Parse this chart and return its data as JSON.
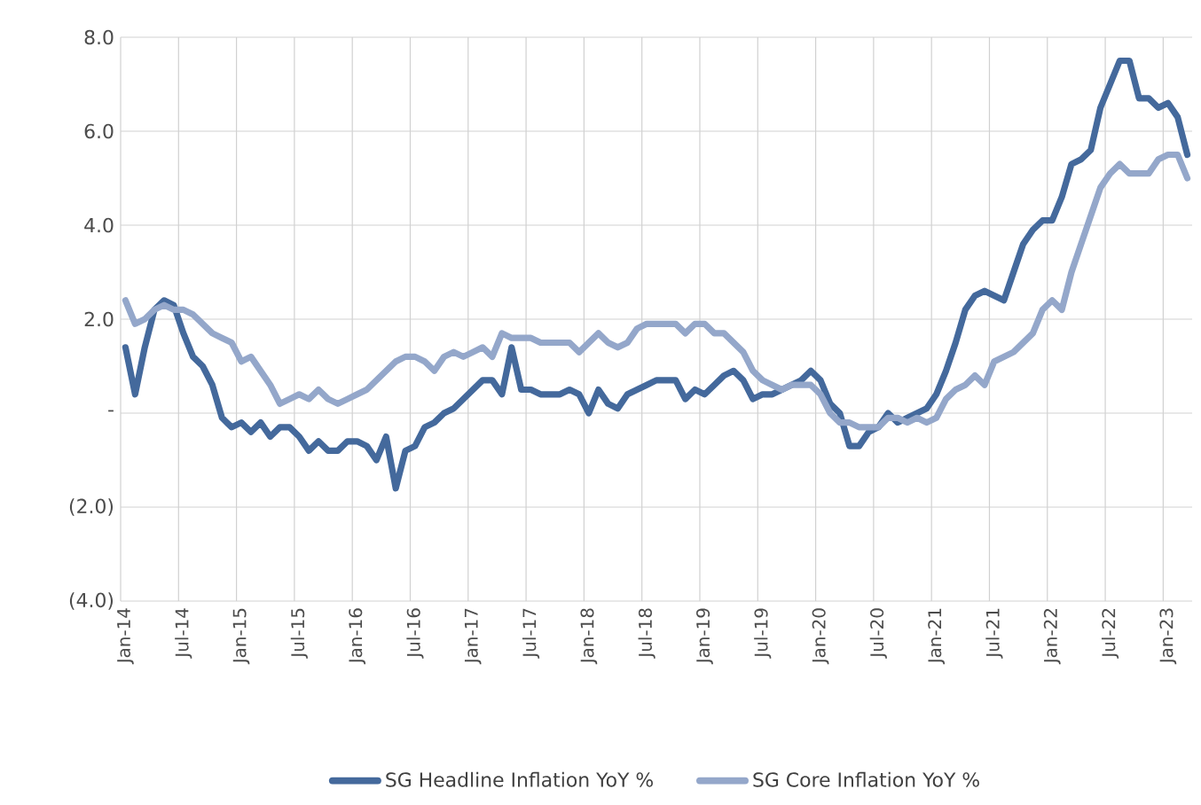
{
  "chart_data": {
    "type": "line",
    "categories": [
      "Jan-14",
      null,
      null,
      null,
      null,
      null,
      "Jul-14",
      null,
      null,
      null,
      null,
      null,
      "Jan-15",
      null,
      null,
      null,
      null,
      null,
      "Jul-15",
      null,
      null,
      null,
      null,
      null,
      "Jan-16",
      null,
      null,
      null,
      null,
      null,
      "Jul-16",
      null,
      null,
      null,
      null,
      null,
      "Jan-17",
      null,
      null,
      null,
      null,
      null,
      "Jul-17",
      null,
      null,
      null,
      null,
      null,
      "Jan-18",
      null,
      null,
      null,
      null,
      null,
      "Jul-18",
      null,
      null,
      null,
      null,
      null,
      "Jan-19",
      null,
      null,
      null,
      null,
      null,
      "Jul-19",
      null,
      null,
      null,
      null,
      null,
      "Jan-20",
      null,
      null,
      null,
      null,
      null,
      "Jul-20",
      null,
      null,
      null,
      null,
      null,
      "Jan-21",
      null,
      null,
      null,
      null,
      null,
      "Jul-21",
      null,
      null,
      null,
      null,
      null,
      "Jan-22",
      null,
      null,
      null,
      null,
      null,
      "Jul-22",
      null,
      null,
      null,
      null,
      null,
      "Jan-23",
      null,
      null
    ],
    "series": [
      {
        "name": "SG Headline Inflation YoY %",
        "color": "#44699c",
        "values": [
          1.4,
          0.4,
          1.4,
          2.2,
          2.4,
          2.3,
          1.7,
          1.2,
          1.0,
          0.6,
          -0.1,
          -0.3,
          -0.2,
          -0.4,
          -0.2,
          -0.5,
          -0.3,
          -0.3,
          -0.5,
          -0.8,
          -0.6,
          -0.8,
          -0.8,
          -0.6,
          -0.6,
          -0.7,
          -1.0,
          -0.5,
          -1.6,
          -0.8,
          -0.7,
          -0.3,
          -0.2,
          0.0,
          0.1,
          0.3,
          0.5,
          0.7,
          0.7,
          0.4,
          1.4,
          0.5,
          0.5,
          0.4,
          0.4,
          0.4,
          0.5,
          0.4,
          0.0,
          0.5,
          0.2,
          0.1,
          0.4,
          0.5,
          0.6,
          0.7,
          0.7,
          0.7,
          0.3,
          0.5,
          0.4,
          0.6,
          0.8,
          0.9,
          0.7,
          0.3,
          0.4,
          0.4,
          0.5,
          0.6,
          0.7,
          0.9,
          0.7,
          0.2,
          0.0,
          -0.7,
          -0.7,
          -0.4,
          -0.3,
          0.0,
          -0.2,
          -0.1,
          0.0,
          0.1,
          0.4,
          0.9,
          1.5,
          2.2,
          2.5,
          2.6,
          2.5,
          2.4,
          3.0,
          3.6,
          3.9,
          4.1,
          4.1,
          4.6,
          5.3,
          5.4,
          5.6,
          6.5,
          7.0,
          7.5,
          7.5,
          6.7,
          6.7,
          6.5,
          6.6,
          6.3,
          5.5
        ]
      },
      {
        "name": "SG Core Inflation YoY %",
        "color": "#94a7ca",
        "values": [
          2.4,
          1.9,
          2.0,
          2.2,
          2.3,
          2.2,
          2.2,
          2.1,
          1.9,
          1.7,
          1.6,
          1.5,
          1.1,
          1.2,
          0.9,
          0.6,
          0.2,
          0.3,
          0.4,
          0.3,
          0.5,
          0.3,
          0.2,
          0.3,
          0.4,
          0.5,
          0.7,
          0.9,
          1.1,
          1.2,
          1.2,
          1.1,
          0.9,
          1.2,
          1.3,
          1.2,
          1.3,
          1.4,
          1.2,
          1.7,
          1.6,
          1.6,
          1.6,
          1.5,
          1.5,
          1.5,
          1.5,
          1.3,
          1.5,
          1.7,
          1.5,
          1.4,
          1.5,
          1.8,
          1.9,
          1.9,
          1.9,
          1.9,
          1.7,
          1.9,
          1.9,
          1.7,
          1.7,
          1.5,
          1.3,
          0.9,
          0.7,
          0.6,
          0.5,
          0.6,
          0.6,
          0.6,
          0.4,
          0.0,
          -0.2,
          -0.2,
          -0.3,
          -0.3,
          -0.3,
          -0.1,
          -0.1,
          -0.2,
          -0.1,
          -0.2,
          -0.1,
          0.3,
          0.5,
          0.6,
          0.8,
          0.6,
          1.1,
          1.2,
          1.3,
          1.5,
          1.7,
          2.2,
          2.4,
          2.2,
          3.0,
          3.6,
          4.2,
          4.8,
          5.1,
          5.3,
          5.1,
          5.1,
          5.1,
          5.4,
          5.5,
          5.5,
          5.0
        ]
      }
    ],
    "ylim": [
      -4,
      8
    ],
    "yticks": [
      {
        "value": -4,
        "label": "(4.0)"
      },
      {
        "value": -2,
        "label": "(2.0)"
      },
      {
        "value": 0,
        "label": "-"
      },
      {
        "value": 2,
        "label": "2.0"
      },
      {
        "value": 4,
        "label": "4.0"
      },
      {
        "value": 6,
        "label": "6.0"
      },
      {
        "value": 8,
        "label": "8.0"
      }
    ],
    "grid": true,
    "legend": "bottom",
    "line_style": "solid",
    "marker": "none"
  }
}
